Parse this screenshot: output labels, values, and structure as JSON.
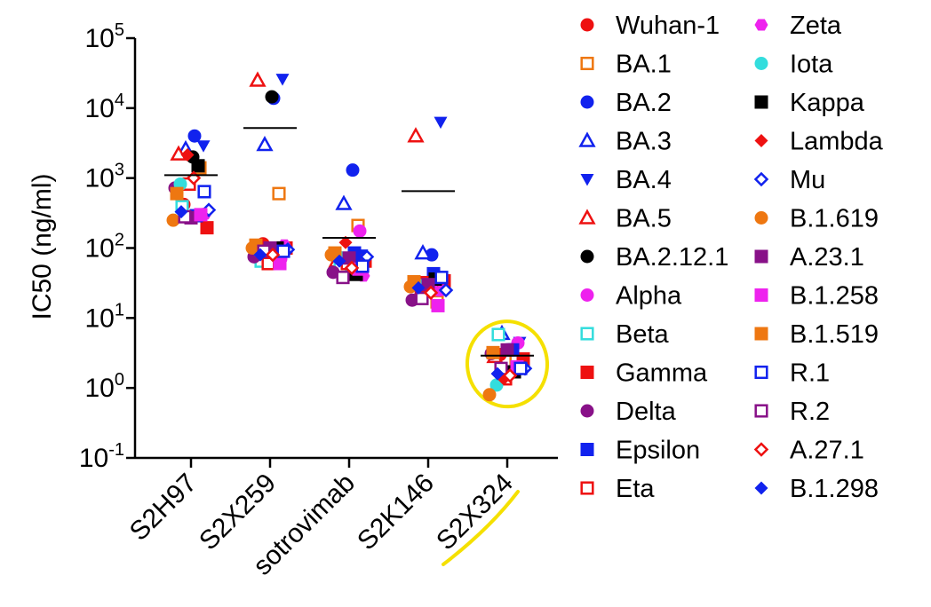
{
  "chart_data": {
    "type": "scatter",
    "ylabel": "IC50 (ng/ml)",
    "yscale": "log",
    "ylim": [
      0.1,
      100000
    ],
    "yticks": [
      {
        "value": 0.1,
        "base": "10",
        "exp": "-1"
      },
      {
        "value": 1,
        "base": "10",
        "exp": "0"
      },
      {
        "value": 10,
        "base": "10",
        "exp": "1"
      },
      {
        "value": 100,
        "base": "10",
        "exp": "2"
      },
      {
        "value": 1000,
        "base": "10",
        "exp": "3"
      },
      {
        "value": 10000,
        "base": "10",
        "exp": "4"
      },
      {
        "value": 100000,
        "base": "10",
        "exp": "5"
      }
    ],
    "categories": [
      "S2H97",
      "S2X259",
      "sotrovimab",
      "S2K146",
      "S2X324"
    ],
    "geometric_means": [
      1100,
      5200,
      140,
      650,
      2.9
    ],
    "highlighted_category": "S2X324",
    "legend_position": "right",
    "series": [
      {
        "name": "Wuhan-1",
        "marker": "circle",
        "filled": true,
        "color": "#ee1111",
        "values": [
          420,
          115,
          55,
          22,
          3.0
        ]
      },
      {
        "name": "BA.1",
        "marker": "square",
        "filled": false,
        "color": "#ee7711",
        "values": [
          1400,
          600,
          210,
          17,
          2.5
        ]
      },
      {
        "name": "BA.2",
        "marker": "circle",
        "filled": true,
        "color": "#1122ee",
        "values": [
          4000,
          13800,
          1300,
          80,
          3.5
        ]
      },
      {
        "name": "BA.3",
        "marker": "triangle-up",
        "filled": false,
        "color": "#1122ee",
        "values": [
          2600,
          3000,
          430,
          85,
          6.0
        ]
      },
      {
        "name": "BA.4",
        "marker": "triangle-down",
        "filled": true,
        "color": "#1122ee",
        "values": [
          2900,
          26000,
          80,
          6300,
          4.5
        ]
      },
      {
        "name": "BA.5",
        "marker": "triangle-up",
        "filled": false,
        "color": "#ee1111",
        "values": [
          2200,
          25000,
          65,
          4000,
          2.8
        ]
      },
      {
        "name": "BA.2.12.1",
        "marker": "circle",
        "filled": true,
        "color": "#000000",
        "values": [
          2000,
          14500,
          50,
          27,
          3.5
        ]
      },
      {
        "name": "Alpha",
        "marker": "circle",
        "filled": true,
        "color": "#ee22ee",
        "values": [
          290,
          70,
          175,
          25,
          4.4
        ]
      },
      {
        "name": "Beta",
        "marker": "square",
        "filled": false,
        "color": "#33dddd",
        "values": [
          390,
          65,
          55,
          32,
          5.8
        ]
      },
      {
        "name": "Gamma",
        "marker": "square",
        "filled": true,
        "color": "#ee1111",
        "values": [
          195,
          100,
          65,
          34,
          2.6
        ]
      },
      {
        "name": "Delta",
        "marker": "circle",
        "filled": true,
        "color": "#881188",
        "values": [
          720,
          75,
          45,
          18,
          3.1
        ]
      },
      {
        "name": "Epsilon",
        "marker": "square",
        "filled": true,
        "color": "#1122ee",
        "values": [
          290,
          85,
          85,
          43,
          3.5
        ]
      },
      {
        "name": "Eta",
        "marker": "square",
        "filled": false,
        "color": "#ee1111",
        "values": [
          820,
          60,
          60,
          32,
          1.35
        ]
      },
      {
        "name": "Zeta",
        "marker": "hexagon",
        "filled": true,
        "color": "#ee22ee",
        "values": [
          310,
          110,
          40,
          25,
          1.9
        ]
      },
      {
        "name": "Iota",
        "marker": "circle",
        "filled": true,
        "color": "#33dddd",
        "values": [
          820,
          90,
          75,
          30,
          1.1
        ]
      },
      {
        "name": "Kappa",
        "marker": "square",
        "filled": true,
        "color": "#000000",
        "values": [
          1500,
          100,
          42,
          36,
          1.7
        ]
      },
      {
        "name": "Lambda",
        "marker": "diamond",
        "filled": true,
        "color": "#ee1111",
        "values": [
          2150,
          105,
          120,
          22,
          1.35
        ]
      },
      {
        "name": "Mu",
        "marker": "diamond",
        "filled": false,
        "color": "#1122ee",
        "values": [
          350,
          95,
          75,
          25,
          1.9
        ]
      },
      {
        "name": "B.1.619",
        "marker": "circle",
        "filled": true,
        "color": "#ee7711",
        "values": [
          250,
          100,
          80,
          28,
          0.8
        ]
      },
      {
        "name": "A.23.1",
        "marker": "square",
        "filled": true,
        "color": "#881188",
        "values": [
          270,
          100,
          72,
          30,
          3.5
        ]
      },
      {
        "name": "B.1.258",
        "marker": "square",
        "filled": true,
        "color": "#ee22ee",
        "values": [
          300,
          60,
          50,
          15,
          2.0
        ]
      },
      {
        "name": "B.1.519",
        "marker": "square",
        "filled": true,
        "color": "#ee7711",
        "values": [
          600,
          110,
          85,
          33,
          3.2
        ]
      },
      {
        "name": "R.1",
        "marker": "square",
        "filled": false,
        "color": "#1122ee",
        "values": [
          640,
          90,
          55,
          38,
          1.9
        ]
      },
      {
        "name": "R.2",
        "marker": "square",
        "filled": false,
        "color": "#881188",
        "values": [
          280,
          90,
          38,
          19,
          1.9
        ]
      },
      {
        "name": "A.27.1",
        "marker": "diamond",
        "filled": false,
        "color": "#ee1111",
        "values": [
          1000,
          80,
          52,
          23,
          1.5
        ]
      },
      {
        "name": "B.1.298",
        "marker": "diamond",
        "filled": true,
        "color": "#1122ee",
        "values": [
          330,
          80,
          65,
          27,
          1.6
        ]
      }
    ]
  }
}
